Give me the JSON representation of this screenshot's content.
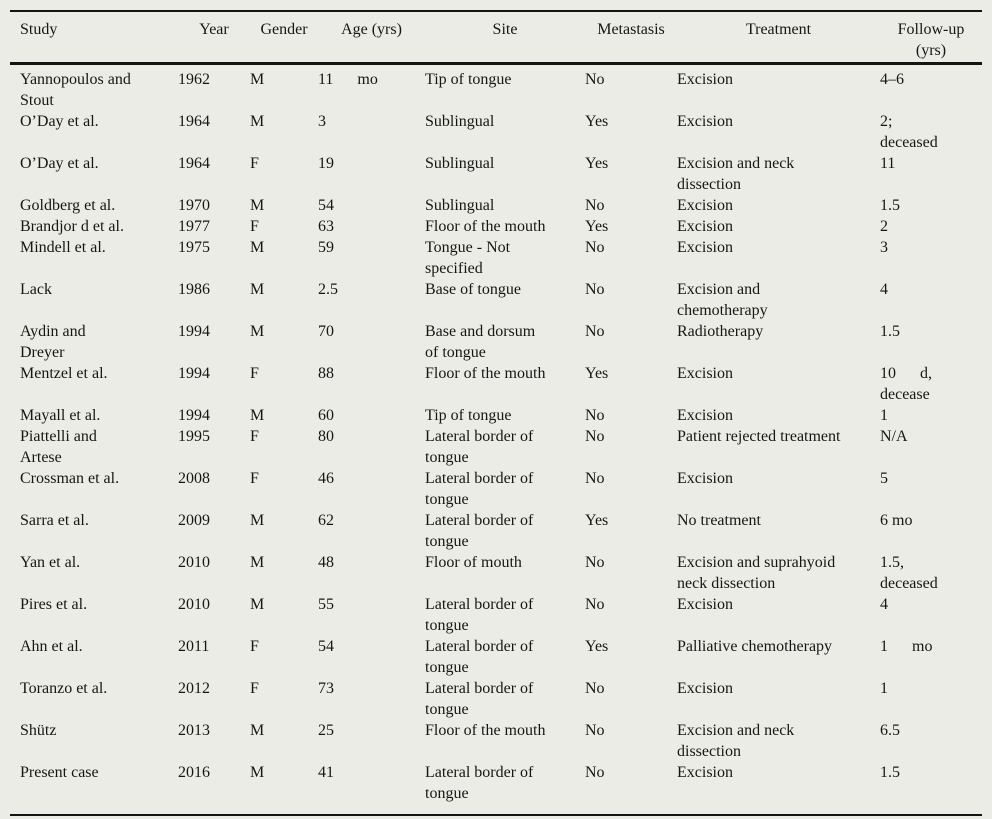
{
  "colors": {
    "background": "#ECECE6",
    "text": "#161616",
    "rule": "#141414"
  },
  "table": {
    "columns": [
      "Study",
      "Year",
      "Gender",
      "Age (yrs)",
      "Site",
      "Metastasis",
      "Treatment",
      "Follow-up\n(yrs)"
    ],
    "rows": [
      [
        "Yannopoulos and\nStout",
        "1962",
        "M",
        "11      mo",
        "Tip of tongue",
        "No",
        "Excision",
        "4–6"
      ],
      [
        "O’Day et al.",
        "1964",
        "M",
        "3",
        "Sublingual",
        "Yes",
        "Excision",
        "2;\ndeceased"
      ],
      [
        "O’Day et al.",
        "1964",
        "F",
        "19",
        "Sublingual",
        "Yes",
        "Excision and neck\ndissection",
        "11"
      ],
      [
        "Goldberg et al.",
        "1970",
        "M",
        "54",
        "Sublingual",
        "No",
        "Excision",
        "1.5"
      ],
      [
        "Brandjor d et al.",
        "1977",
        "F",
        "63",
        "Floor of the mouth",
        "Yes",
        "Excision",
        "2"
      ],
      [
        "Mindell et al.",
        "1975",
        "M",
        "59",
        "Tongue - Not\nspecified",
        "No",
        "Excision",
        "3"
      ],
      [
        "Lack",
        "1986",
        "M",
        "2.5",
        "Base of tongue",
        "No",
        "Excision and\nchemotherapy",
        "4"
      ],
      [
        "Aydin and\nDreyer",
        "1994",
        "M",
        "70",
        "Base and dorsum\nof tongue",
        "No",
        "Radiotherapy",
        "1.5"
      ],
      [
        "Mentzel et al.",
        "1994",
        "F",
        "88",
        "Floor of the mouth",
        "Yes",
        "Excision",
        "10      d,\ndecease"
      ],
      [
        "Mayall et al.",
        "1994",
        "M",
        "60",
        "Tip of tongue",
        "No",
        "Excision",
        "1"
      ],
      [
        "Piattelli and\nArtese",
        "1995",
        "F",
        "80",
        "Lateral border of\ntongue",
        "No",
        "Patient rejected treatment",
        "N/A"
      ],
      [
        "Crossman et al.",
        "2008",
        "F",
        "46",
        "Lateral border of\ntongue",
        "No",
        "Excision",
        "5"
      ],
      [
        "Sarra et al.",
        "2009",
        "M",
        "62",
        "Lateral border of\ntongue",
        "Yes",
        "No treatment",
        "6 mo"
      ],
      [
        "Yan et al.",
        "2010",
        "M",
        "48",
        "Floor of mouth",
        "No",
        "Excision and suprahyoid\nneck dissection",
        "1.5,\ndeceased"
      ],
      [
        "Pires et al.",
        "2010",
        "M",
        "55",
        "Lateral border of\ntongue",
        "No",
        "Excision",
        "4"
      ],
      [
        "Ahn et al.",
        "2011",
        "F",
        "54",
        "Lateral border of\ntongue",
        "Yes",
        "Palliative chemotherapy",
        "1      mo"
      ],
      [
        "Toranzo et al.",
        "2012",
        "F",
        "73",
        "Lateral border of\ntongue",
        "No",
        "Excision",
        "1"
      ],
      [
        "Shütz",
        "2013",
        "M",
        "25",
        "Floor of the mouth",
        "No",
        "Excision and neck\ndissection",
        "6.5"
      ],
      [
        "Present case",
        "2016",
        "M",
        "41",
        "Lateral border of\ntongue",
        "No",
        "Excision",
        "1.5"
      ]
    ]
  }
}
